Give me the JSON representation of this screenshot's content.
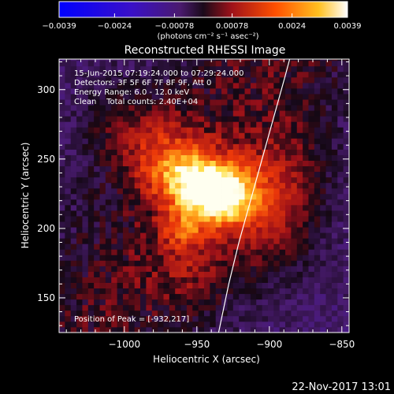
{
  "chart_data": {
    "type": "heatmap",
    "title": "Reconstructed RHESSI Image",
    "xlabel": "Heliocentric X (arcsec)",
    "ylabel": "Heliocentric Y (arcsec)",
    "xlim": [
      -1045,
      -845
    ],
    "ylim": [
      125,
      322
    ],
    "x_ticks": [
      -1000,
      -950,
      -900,
      -850
    ],
    "x_tick_labels": [
      "−1000",
      "−950",
      "−900",
      "−850"
    ],
    "y_ticks": [
      150,
      200,
      250,
      300
    ],
    "y_tick_labels": [
      "150",
      "200",
      "250",
      "300"
    ],
    "colorbar": {
      "min": -0.0039,
      "max": 0.0039,
      "ticks": [
        -0.0039,
        -0.0024,
        -0.00078,
        0.00078,
        0.0024,
        0.0039
      ],
      "tick_labels": [
        "−0.0039",
        "−0.0024",
        "−0.00078",
        "0.00078",
        "0.0024",
        "0.0039"
      ],
      "unit_label": "(photons cm⁻² s⁻¹ asec⁻²)"
    },
    "annotations": [
      "15-Jun-2015 07:19:24.000 to 07:29:24.000",
      "Detectors: 3F 5F 6F 7F 8F 9F, Att 0",
      "Energy Range: 6.0 - 12.0 keV",
      "Clean    Total counts: 2.40E+04"
    ],
    "peak_label": "Position of Peak = [-932,217]",
    "peak": {
      "x": -932,
      "y": 217
    },
    "sources": [
      {
        "x": -940,
        "y": 228,
        "sx": 20,
        "sy": 16,
        "amp": 0.0038
      },
      {
        "x": -932,
        "y": 217,
        "sx": 14,
        "sy": 12,
        "amp": 0.0012
      },
      {
        "x": -962,
        "y": 240,
        "sx": 18,
        "sy": 14,
        "amp": 0.0016
      },
      {
        "x": -960,
        "y": 198,
        "sx": 10,
        "sy": 10,
        "amp": 0.0014
      },
      {
        "x": -905,
        "y": 210,
        "sx": 22,
        "sy": 30,
        "amp": 0.0012
      },
      {
        "x": -978,
        "y": 262,
        "sx": 20,
        "sy": 18,
        "amp": 0.0012
      },
      {
        "x": -955,
        "y": 170,
        "sx": 20,
        "sy": 20,
        "amp": 0.0008
      },
      {
        "x": -885,
        "y": 240,
        "sx": 18,
        "sy": 35,
        "amp": 0.0007
      },
      {
        "x": -1010,
        "y": 280,
        "sx": 15,
        "sy": 20,
        "amp": 0.0005
      }
    ],
    "limb_arc": [
      [
        -935,
        125
      ],
      [
        -928,
        160
      ],
      [
        -921,
        190
      ],
      [
        -913,
        220
      ],
      [
        -905,
        250
      ],
      [
        -897,
        280
      ],
      [
        -889,
        310
      ],
      [
        -886,
        322
      ]
    ]
  },
  "footer_timestamp": "22-Nov-2017 13:01"
}
